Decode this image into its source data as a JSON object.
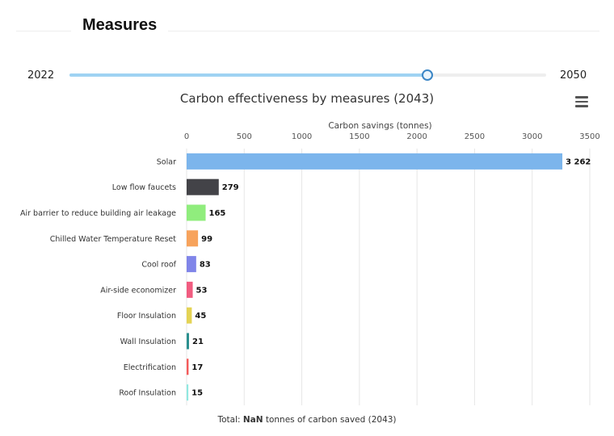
{
  "header": {
    "title": "Measures"
  },
  "slider": {
    "min_label": "2022",
    "max_label": "2050",
    "min": 2022,
    "max": 2050,
    "value": 2043
  },
  "toolbar": {
    "menu_icon": "hamburger-menu-icon"
  },
  "colors": {
    "slider_fill": "#9fd3f3",
    "slider_thumb": "#3b86c6"
  },
  "chart_data": {
    "type": "bar",
    "orientation": "horizontal",
    "title": "Carbon effectiveness by measures (2043)",
    "xlabel": "Carbon savings (tonnes)",
    "xlim": [
      0,
      3500
    ],
    "xticks": [
      0,
      500,
      1000,
      1500,
      2000,
      2500,
      3000,
      3500
    ],
    "x_axis_position": "top",
    "grid": true,
    "categories": [
      "Solar",
      "Low flow faucets",
      "Air barrier to reduce building air leakage",
      "Chilled Water Temperature Reset",
      "Cool roof",
      "Air-side economizer",
      "Floor Insulation",
      "Wall Insulation",
      "Electrification",
      "Roof Insulation"
    ],
    "values": [
      3262,
      279,
      165,
      99,
      83,
      53,
      45,
      21,
      17,
      15
    ],
    "data_labels": [
      "3 262",
      "279",
      "165",
      "99",
      "83",
      "53",
      "45",
      "21",
      "17",
      "15"
    ],
    "colors": [
      "#7cb5ec",
      "#434348",
      "#90ed7d",
      "#f7a35c",
      "#8085e9",
      "#f15c80",
      "#e4d354",
      "#2b908f",
      "#f45b5b",
      "#91e8e1"
    ]
  },
  "footer": {
    "prefix": "Total: ",
    "value": "NaN",
    "suffix": " tonnes of carbon saved (2043)"
  }
}
